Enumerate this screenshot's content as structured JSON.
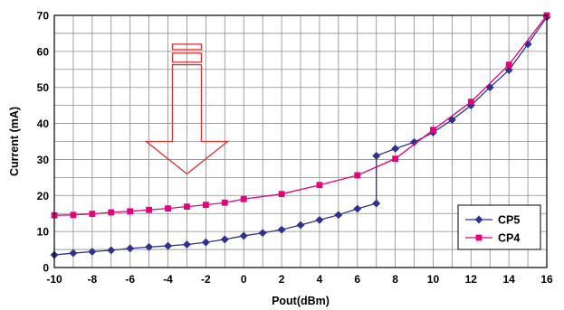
{
  "chart_data": {
    "type": "line",
    "title": "",
    "xlabel": "Pout(dBm)",
    "ylabel": "Current (mA)",
    "xlim": [
      -10,
      16
    ],
    "ylim": [
      0,
      70
    ],
    "xticks": [
      -10,
      -8,
      -6,
      -4,
      -2,
      0,
      2,
      4,
      6,
      8,
      10,
      12,
      14,
      16
    ],
    "yticks": [
      0,
      10,
      20,
      30,
      40,
      50,
      60,
      70
    ],
    "grid": true,
    "legend_position": "bottom-right",
    "series": [
      {
        "name": "CP5",
        "color": "#2E3192",
        "marker": "diamond",
        "points": [
          [
            -10,
            3.5
          ],
          [
            -9,
            4.0
          ],
          [
            -8,
            4.4
          ],
          [
            -7,
            4.8
          ],
          [
            -6,
            5.3
          ],
          [
            -5,
            5.7
          ],
          [
            -4,
            6.0
          ],
          [
            -3,
            6.4
          ],
          [
            -2,
            7.0
          ],
          [
            -1,
            7.8
          ],
          [
            0,
            8.8
          ],
          [
            1,
            9.6
          ],
          [
            2,
            10.5
          ],
          [
            3,
            11.8
          ],
          [
            4,
            13.2
          ],
          [
            5,
            14.6
          ],
          [
            6,
            16.3
          ],
          [
            7,
            17.8
          ],
          [
            7,
            31.0
          ],
          [
            8,
            33.0
          ],
          [
            9,
            34.8
          ],
          [
            10,
            37.5
          ],
          [
            11,
            41.0
          ],
          [
            12,
            45.0
          ],
          [
            13,
            50.0
          ],
          [
            14,
            54.8
          ],
          [
            15,
            62.0
          ],
          [
            16,
            69.5
          ]
        ]
      },
      {
        "name": "CP4",
        "color": "#E6007E",
        "marker": "square",
        "points": [
          [
            -10,
            14.5
          ],
          [
            -9,
            14.6
          ],
          [
            -8,
            14.9
          ],
          [
            -7,
            15.3
          ],
          [
            -6,
            15.6
          ],
          [
            -5,
            16.0
          ],
          [
            -4,
            16.4
          ],
          [
            -3,
            16.9
          ],
          [
            -2,
            17.4
          ],
          [
            -1,
            18.0
          ],
          [
            0,
            19.0
          ],
          [
            2,
            20.4
          ],
          [
            4,
            22.9
          ],
          [
            6,
            25.6
          ],
          [
            8,
            30.2
          ],
          [
            10,
            38.2
          ],
          [
            12,
            46.0
          ],
          [
            14,
            56.3
          ],
          [
            16,
            70.0
          ]
        ]
      }
    ],
    "annotation": {
      "type": "down-arrow",
      "color": "#E03030"
    }
  }
}
